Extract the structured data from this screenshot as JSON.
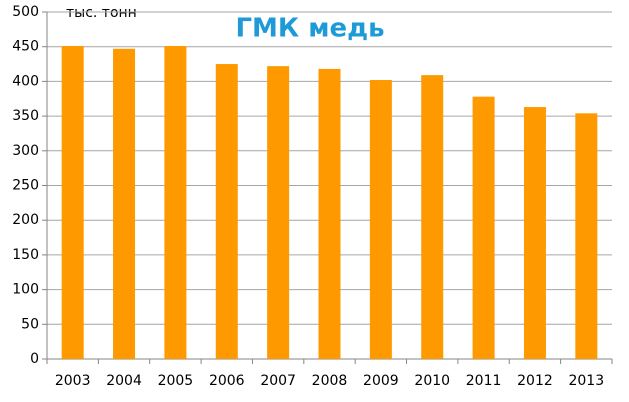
{
  "chart_data": {
    "type": "bar",
    "title": "ГМК медь",
    "y_label": "тыс. тонн",
    "categories": [
      "2003",
      "2004",
      "2005",
      "2006",
      "2007",
      "2008",
      "2009",
      "2010",
      "2011",
      "2012",
      "2013"
    ],
    "values": [
      451,
      447,
      451,
      425,
      422,
      418,
      402,
      409,
      378,
      363,
      354
    ],
    "color": "#ff9900",
    "ylim": [
      0,
      500
    ],
    "yticks": [
      0,
      50,
      100,
      150,
      200,
      250,
      300,
      350,
      400,
      450,
      500
    ],
    "grid": true
  }
}
